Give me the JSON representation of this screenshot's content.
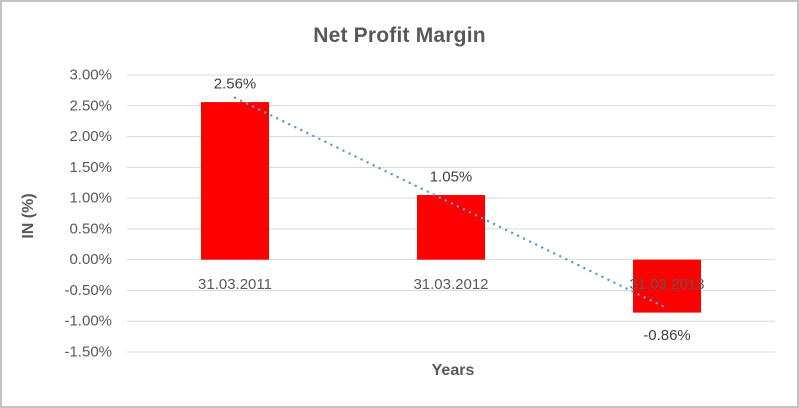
{
  "chart": {
    "title": "Net Profit Margin",
    "x_axis_title": "Years",
    "y_axis_title": "IN (%)"
  },
  "chart_data": {
    "type": "bar",
    "title": "Net Profit Margin",
    "xlabel": "Years",
    "ylabel": "IN (%)",
    "categories": [
      "31.03.2011",
      "31.03.2012",
      "31.03.2013"
    ],
    "values": [
      2.56,
      1.05,
      -0.86
    ],
    "value_labels": [
      "2.56%",
      "1.05%",
      "-0.86%"
    ],
    "ylim": [
      -1.5,
      3.0
    ],
    "y_tick_step": 0.5,
    "y_tick_labels": [
      "3.00%",
      "2.50%",
      "2.00%",
      "1.50%",
      "1.00%",
      "0.50%",
      "0.00%",
      "-0.50%",
      "-1.00%",
      "-1.50%"
    ],
    "y_tick_values": [
      3.0,
      2.5,
      2.0,
      1.5,
      1.0,
      0.5,
      0.0,
      -0.5,
      -1.0,
      -1.5
    ],
    "grid": true,
    "legend": "none",
    "bar_color": "#ff0000",
    "gridline_color": "#d9d9d9",
    "text_color": "#595959",
    "trendline": {
      "type": "linear",
      "style": "dotted",
      "color": "#5b9bd5",
      "start_value": 2.63,
      "end_value": -0.79
    }
  }
}
